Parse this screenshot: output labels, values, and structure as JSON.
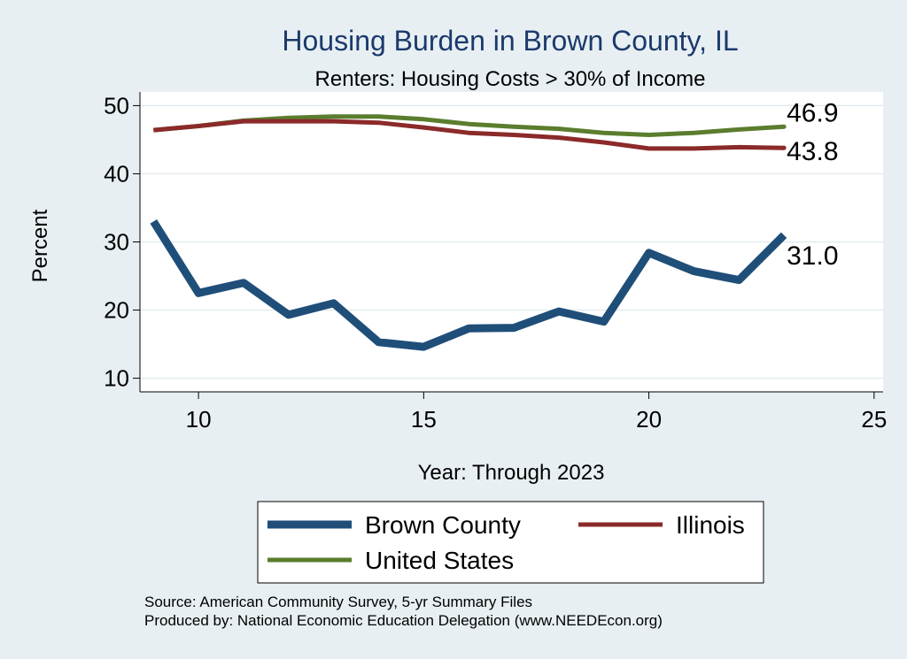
{
  "colors": {
    "background": "#e8eff3",
    "plot_bg": "#ffffff",
    "grid": "#e3ebef",
    "brown_county": "#1f4e79",
    "illinois": "#8b2a2a",
    "united_states": "#5a7d2e",
    "title": "#1a3a6b"
  },
  "chart_data": {
    "type": "line",
    "title": "Housing Burden in Brown County, IL",
    "subtitle": "Renters: Housing Costs > 30% of Income",
    "xlabel": "Year: Through 2023",
    "ylabel": "Percent",
    "xlim": [
      8.7,
      25.2
    ],
    "ylim": [
      8,
      52
    ],
    "xticks": [
      "10",
      "15",
      "20",
      "25"
    ],
    "yticks": [
      "10",
      "20",
      "30",
      "40",
      "50"
    ],
    "grid": true,
    "legend_position": "bottom",
    "x": [
      9,
      10,
      11,
      12,
      13,
      14,
      15,
      16,
      17,
      18,
      19,
      20,
      21,
      22,
      23
    ],
    "series": [
      {
        "name": "Brown County",
        "color_key": "brown_county",
        "stroke": "thick",
        "values": [
          33.0,
          22.5,
          24.0,
          19.3,
          21.0,
          15.3,
          14.6,
          17.3,
          17.4,
          19.8,
          18.3,
          28.4,
          25.7,
          24.4,
          31.0
        ],
        "end_label": "31.0"
      },
      {
        "name": "Illinois",
        "color_key": "illinois",
        "stroke": "thin",
        "values": [
          46.4,
          47.0,
          47.7,
          47.7,
          47.7,
          47.5,
          46.8,
          46.0,
          45.7,
          45.3,
          44.6,
          43.7,
          43.7,
          43.9,
          43.8
        ],
        "end_label": "43.8"
      },
      {
        "name": "United States",
        "color_key": "united_states",
        "stroke": "thin",
        "values": [
          46.4,
          47.0,
          47.8,
          48.2,
          48.4,
          48.4,
          48.0,
          47.3,
          46.9,
          46.6,
          46.0,
          45.7,
          46.0,
          46.5,
          46.9
        ],
        "end_label": "46.9"
      }
    ]
  },
  "source_line": "Source: American Community Survey, 5-yr Summary Files",
  "produced_line": "Produced by: National Economic Education Delegation (www.NEEDEcon.org)"
}
